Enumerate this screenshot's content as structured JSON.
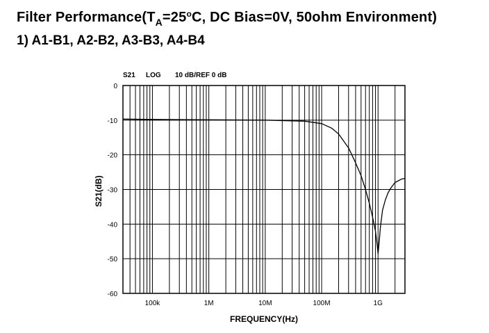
{
  "heading": {
    "title_prefix": "Filter Performance(T",
    "title_sub": "A",
    "title_mid": "=25",
    "title_deg": "o",
    "title_suffix": "C, DC Bias=0V, 50ohm Environment)",
    "subtitle": "1) A1-B1, A2-B2, A3-B3, A4-B4"
  },
  "chart_data": {
    "type": "line",
    "header": {
      "param": "S21",
      "format": "LOG",
      "scale": "10 dB/REF 0 dB"
    },
    "xlabel": "FREQUENCY(Hz)",
    "ylabel": "S21(dB)",
    "xscale": "log",
    "xlim": [
      30000,
      3000000000
    ],
    "ylim": [
      -60,
      0
    ],
    "x_ticks": [
      {
        "value": 100000,
        "label": "100k"
      },
      {
        "value": 1000000,
        "label": "1M"
      },
      {
        "value": 10000000,
        "label": "10M"
      },
      {
        "value": 100000000,
        "label": "100M"
      },
      {
        "value": 1000000000,
        "label": "1G"
      }
    ],
    "y_ticks": [
      {
        "value": 0,
        "label": "0"
      },
      {
        "value": -10,
        "label": "-10"
      },
      {
        "value": -20,
        "label": "-20"
      },
      {
        "value": -30,
        "label": "-30"
      },
      {
        "value": -40,
        "label": "-40"
      },
      {
        "value": -50,
        "label": "-50"
      },
      {
        "value": -60,
        "label": "-60"
      }
    ],
    "grid": true,
    "series": [
      {
        "color": "#000000",
        "x": [
          30000,
          100000,
          1000000,
          10000000,
          50000000,
          100000000,
          150000000,
          200000000,
          300000000,
          400000000,
          500000000,
          600000000,
          700000000,
          800000000,
          900000000,
          950000000,
          1000000000,
          1050000000,
          1100000000,
          1200000000,
          1350000000,
          1500000000,
          1700000000,
          2000000000,
          2300000000,
          2600000000,
          3000000000
        ],
        "y": [
          -9.7,
          -9.8,
          -9.9,
          -10,
          -10.3,
          -11,
          -12.3,
          -14,
          -18,
          -22.3,
          -26,
          -30,
          -34,
          -38,
          -42,
          -45,
          -48.5,
          -45,
          -41,
          -36,
          -33,
          -31,
          -29.5,
          -28,
          -27.5,
          -27,
          -26.8
        ]
      }
    ]
  }
}
